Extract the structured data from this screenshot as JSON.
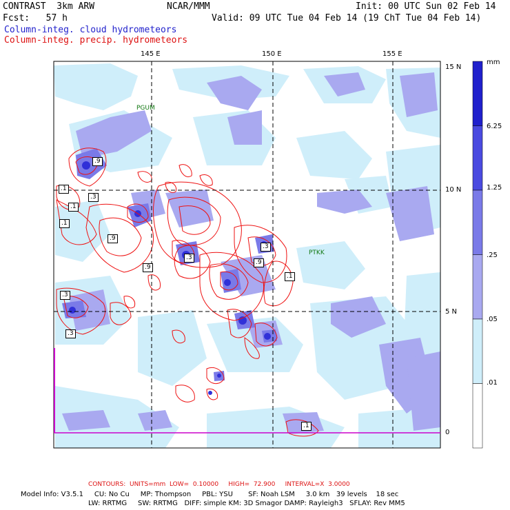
{
  "header": {
    "model_title": "CONTRAST  3km ARW",
    "center": "NCAR/MMM",
    "init": "Init: 00 UTC Sun 02 Feb 14",
    "fcst": "Fcst:   57 h",
    "valid": "Valid: 09 UTC Tue 04 Feb 14 (19 ChT Tue 04 Feb 14)",
    "field1": "Column-integ. cloud hydrometeors",
    "field2": "Column-integ. precip. hydrometeors"
  },
  "map": {
    "lon_labels": [
      "145 E",
      "150 E",
      "155 E"
    ],
    "lat_labels": [
      "15 N",
      "10 N",
      "5 N",
      "0"
    ],
    "stations": [
      "PGUM",
      "PTKK"
    ],
    "contour_labels": [
      ".9",
      ".1",
      ".3",
      ".1",
      ".1",
      ".9",
      ".9",
      ".3",
      ".9",
      ".3",
      ".1",
      ".3",
      ".3",
      ".1"
    ]
  },
  "colorbar": {
    "unit": "mm",
    "levels": [
      "6.25",
      "1.25",
      ".25",
      ".05",
      ".01"
    ],
    "colors": [
      "#2020cc",
      "#4a4ae0",
      "#7a7ae8",
      "#a9a9f0",
      "#cfeefa",
      "#ffffff"
    ]
  },
  "footer": {
    "contours": "CONTOURS:  UNITS=mm  LOW=  0.10000     HIGH=  72.900     INTERVAL=X  3.0000",
    "line1": "Model Info: V3.5.1     CU: No Cu     MP: Thompson     PBL: YSU       SF: Noah LSM     3.0 km   39 levels    18 sec",
    "line2": "LW: RRTMG     SW: RRTMG   DIFF: simple KM: 3D Smagor DAMP: Rayleigh3   SFLAY: Rev MM5"
  }
}
